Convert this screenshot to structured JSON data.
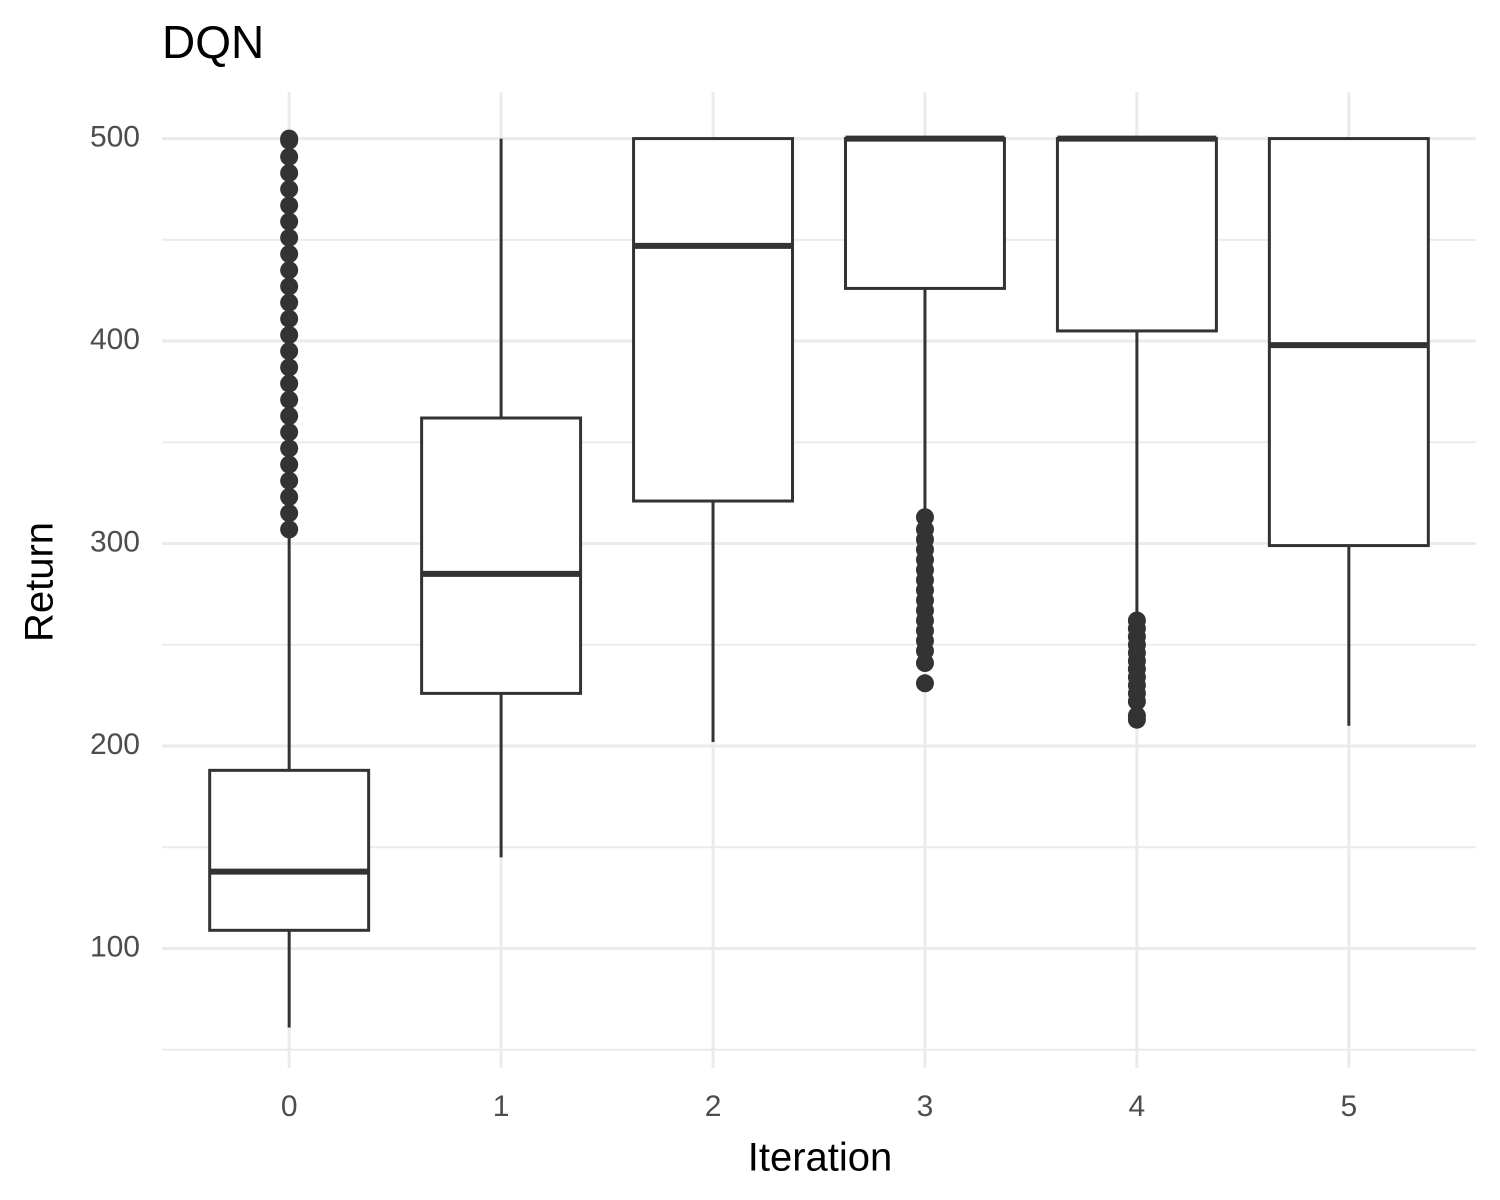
{
  "chart_data": {
    "type": "box",
    "title": "DQN",
    "x_label": "Iteration",
    "y_label": "Return",
    "categories": [
      "0",
      "1",
      "2",
      "3",
      "4",
      "5"
    ],
    "boxes": [
      {
        "low": 61,
        "q1": 109,
        "median": 138,
        "q3": 188,
        "high": 305,
        "outliers": [
          307,
          315,
          323,
          331,
          339,
          347,
          355,
          363,
          371,
          379,
          387,
          395,
          403,
          411,
          419,
          427,
          435,
          443,
          451,
          459,
          467,
          475,
          483,
          491,
          499,
          500
        ]
      },
      {
        "low": 145,
        "q1": 226,
        "median": 285,
        "q3": 362,
        "high": 500,
        "outliers": []
      },
      {
        "low": 202,
        "q1": 321,
        "median": 447,
        "q3": 500,
        "high": 500,
        "outliers": []
      },
      {
        "low": 316,
        "q1": 426,
        "median": 500,
        "q3": 500,
        "high": 500,
        "outliers": [
          231,
          241,
          247,
          252,
          257,
          262,
          267,
          272,
          277,
          282,
          287,
          292,
          297,
          302,
          307,
          313
        ]
      },
      {
        "low": 264,
        "q1": 405,
        "median": 500,
        "q3": 500,
        "high": 500,
        "outliers": [
          213,
          215,
          222,
          226,
          230,
          234,
          238,
          242,
          246,
          250,
          254,
          258,
          262
        ]
      },
      {
        "low": 210,
        "q1": 299,
        "median": 398,
        "q3": 500,
        "high": 500,
        "outliers": []
      }
    ],
    "color": "#333333",
    "ylim": [
      41,
      523
    ],
    "yticks": [
      100,
      200,
      300,
      400,
      500
    ],
    "minor_yticks": [
      50,
      150,
      250,
      350,
      450
    ],
    "grid": true
  }
}
